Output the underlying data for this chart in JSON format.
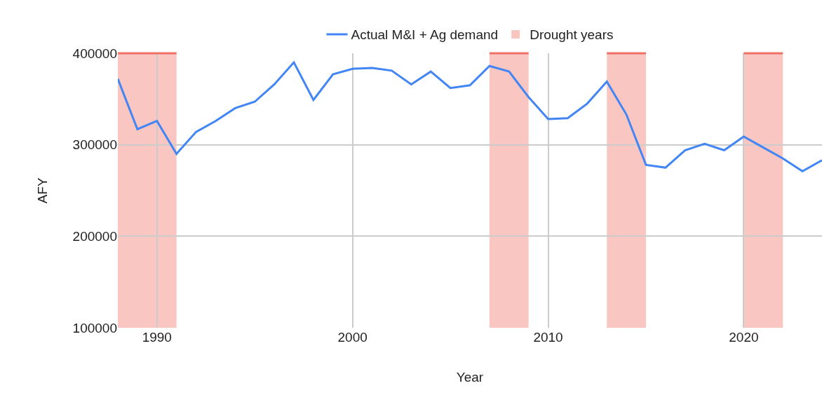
{
  "chart_data": {
    "type": "line",
    "xlabel": "Year",
    "ylabel": "AFY",
    "x": [
      1988,
      1989,
      1990,
      1991,
      1992,
      1993,
      1994,
      1995,
      1996,
      1997,
      1998,
      1999,
      2000,
      2001,
      2002,
      2003,
      2004,
      2005,
      2006,
      2007,
      2008,
      2009,
      2010,
      2011,
      2012,
      2013,
      2014,
      2015,
      2016,
      2017,
      2018,
      2019,
      2020,
      2021,
      2022,
      2023,
      2024
    ],
    "series": [
      {
        "name": "Actual M&I + Ag demand",
        "color": "#4285f4",
        "values": [
          372000,
          317000,
          326000,
          290000,
          314000,
          326000,
          340000,
          347000,
          366000,
          390000,
          349000,
          377000,
          383000,
          384000,
          381000,
          366000,
          380000,
          362000,
          365000,
          386000,
          380000,
          352000,
          328000,
          329000,
          345000,
          369000,
          333000,
          278000,
          275000,
          294000,
          301000,
          294000,
          309000,
          297000,
          285000,
          271000,
          283000
        ]
      }
    ],
    "bands": [
      {
        "axis": "x",
        "from": 1988,
        "to": 1991,
        "label": "Drought years",
        "color": "#ea4335"
      },
      {
        "axis": "x",
        "from": 2007,
        "to": 2009,
        "color": "#ea4335"
      },
      {
        "axis": "x",
        "from": 2013,
        "to": 2015,
        "color": "#ea4335"
      },
      {
        "axis": "x",
        "from": 2020,
        "to": 2022,
        "color": "#ea4335"
      }
    ],
    "xlim": [
      1988,
      2024
    ],
    "xticks": [
      1990,
      2000,
      2010,
      2020
    ],
    "ylim": [
      100000,
      400000
    ],
    "yticks": [
      100000,
      200000,
      300000,
      400000
    ],
    "grid": true,
    "legend": "top",
    "marker": "none",
    "line_style": "solid"
  }
}
